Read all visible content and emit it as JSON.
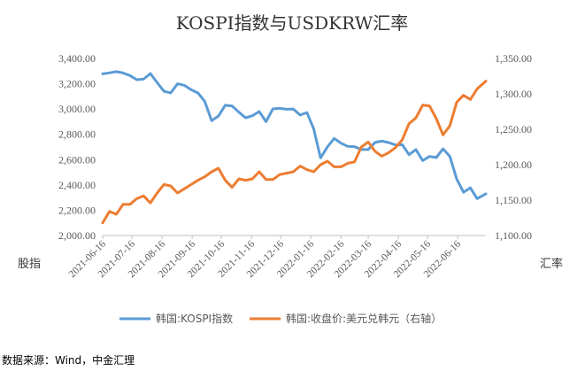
{
  "chart_data": {
    "type": "line",
    "title": "KOSPI指数与USDKRW汇率",
    "ylabel_left": "股指",
    "ylabel_right": "汇率",
    "ylim_left": [
      2000,
      3400
    ],
    "ylim_right": [
      1100,
      1350
    ],
    "yticks_left": [
      "2,000.00",
      "2,200.00",
      "2,400.00",
      "2,600.00",
      "2,800.00",
      "3,000.00",
      "3,200.00",
      "3,400.00"
    ],
    "yticks_right": [
      "1,100.00",
      "1,150.00",
      "1,200.00",
      "1,250.00",
      "1,300.00",
      "1,350.00"
    ],
    "x_categories": [
      "2021-06-16",
      "2021-07-16",
      "2021-08-16",
      "2021-09-16",
      "2021-10-16",
      "2021-11-16",
      "2021-12-16",
      "2022-01-16",
      "2022-02-16",
      "2022-03-16",
      "2022-04-16",
      "2022-05-16",
      "2022-06-16"
    ],
    "x_range": [
      "2021-06-16",
      "2022-07-15"
    ],
    "legend_position": "bottom",
    "series": [
      {
        "name": "韩国:KOSPI指数",
        "axis": "left",
        "color": "#5B9BD5",
        "points": [
          [
            "2021-06-16",
            3278
          ],
          [
            "2021-06-23",
            3286
          ],
          [
            "2021-06-30",
            3296
          ],
          [
            "2021-07-07",
            3285
          ],
          [
            "2021-07-14",
            3265
          ],
          [
            "2021-07-21",
            3232
          ],
          [
            "2021-07-28",
            3236
          ],
          [
            "2021-08-04",
            3280
          ],
          [
            "2021-08-11",
            3210
          ],
          [
            "2021-08-18",
            3140
          ],
          [
            "2021-08-25",
            3128
          ],
          [
            "2021-09-01",
            3200
          ],
          [
            "2021-09-08",
            3187
          ],
          [
            "2021-09-15",
            3153
          ],
          [
            "2021-09-22",
            3127
          ],
          [
            "2021-09-29",
            3060
          ],
          [
            "2021-10-06",
            2908
          ],
          [
            "2021-10-13",
            2944
          ],
          [
            "2021-10-20",
            3030
          ],
          [
            "2021-10-27",
            3025
          ],
          [
            "2021-11-03",
            2975
          ],
          [
            "2021-11-10",
            2930
          ],
          [
            "2021-11-17",
            2947
          ],
          [
            "2021-11-24",
            2980
          ],
          [
            "2021-12-01",
            2900
          ],
          [
            "2021-12-08",
            3001
          ],
          [
            "2021-12-15",
            3006
          ],
          [
            "2021-12-22",
            2998
          ],
          [
            "2021-12-29",
            3000
          ],
          [
            "2022-01-05",
            2953
          ],
          [
            "2022-01-12",
            2972
          ],
          [
            "2022-01-19",
            2842
          ],
          [
            "2022-01-26",
            2614
          ],
          [
            "2022-02-02",
            2700
          ],
          [
            "2022-02-09",
            2768
          ],
          [
            "2022-02-16",
            2730
          ],
          [
            "2022-02-23",
            2705
          ],
          [
            "2022-03-02",
            2703
          ],
          [
            "2022-03-09",
            2680
          ],
          [
            "2022-03-16",
            2680
          ],
          [
            "2022-03-23",
            2736
          ],
          [
            "2022-03-30",
            2746
          ],
          [
            "2022-04-06",
            2735
          ],
          [
            "2022-04-13",
            2716
          ],
          [
            "2022-04-20",
            2718
          ],
          [
            "2022-04-27",
            2639
          ],
          [
            "2022-05-04",
            2680
          ],
          [
            "2022-05-11",
            2592
          ],
          [
            "2022-05-18",
            2625
          ],
          [
            "2022-05-25",
            2617
          ],
          [
            "2022-06-01",
            2685
          ],
          [
            "2022-06-08",
            2626
          ],
          [
            "2022-06-15",
            2447
          ],
          [
            "2022-06-22",
            2342
          ],
          [
            "2022-06-29",
            2377
          ],
          [
            "2022-07-06",
            2292
          ],
          [
            "2022-07-15",
            2330
          ]
        ]
      },
      {
        "name": "韩国:收盘价:美元兑韩元（右轴）",
        "axis": "right",
        "color": "#ED7D31",
        "points": [
          [
            "2021-06-16",
            1118
          ],
          [
            "2021-06-23",
            1134
          ],
          [
            "2021-06-30",
            1130
          ],
          [
            "2021-07-07",
            1144
          ],
          [
            "2021-07-14",
            1144
          ],
          [
            "2021-07-21",
            1152
          ],
          [
            "2021-07-28",
            1156
          ],
          [
            "2021-08-04",
            1146
          ],
          [
            "2021-08-11",
            1160
          ],
          [
            "2021-08-18",
            1172
          ],
          [
            "2021-08-25",
            1170
          ],
          [
            "2021-09-01",
            1160
          ],
          [
            "2021-09-08",
            1166
          ],
          [
            "2021-09-15",
            1172
          ],
          [
            "2021-09-22",
            1178
          ],
          [
            "2021-09-29",
            1183
          ],
          [
            "2021-10-06",
            1190
          ],
          [
            "2021-10-13",
            1195
          ],
          [
            "2021-10-20",
            1178
          ],
          [
            "2021-10-27",
            1168
          ],
          [
            "2021-11-03",
            1180
          ],
          [
            "2021-11-10",
            1178
          ],
          [
            "2021-11-17",
            1180
          ],
          [
            "2021-11-24",
            1190
          ],
          [
            "2021-12-01",
            1179
          ],
          [
            "2021-12-08",
            1179
          ],
          [
            "2021-12-15",
            1186
          ],
          [
            "2021-12-22",
            1188
          ],
          [
            "2021-12-29",
            1190
          ],
          [
            "2022-01-05",
            1198
          ],
          [
            "2022-01-12",
            1193
          ],
          [
            "2022-01-19",
            1190
          ],
          [
            "2022-01-26",
            1200
          ],
          [
            "2022-02-02",
            1205
          ],
          [
            "2022-02-09",
            1197
          ],
          [
            "2022-02-16",
            1197
          ],
          [
            "2022-02-23",
            1202
          ],
          [
            "2022-03-02",
            1204
          ],
          [
            "2022-03-09",
            1225
          ],
          [
            "2022-03-16",
            1232
          ],
          [
            "2022-03-23",
            1219
          ],
          [
            "2022-03-30",
            1212
          ],
          [
            "2022-04-06",
            1217
          ],
          [
            "2022-04-13",
            1224
          ],
          [
            "2022-04-20",
            1235
          ],
          [
            "2022-04-27",
            1258
          ],
          [
            "2022-05-04",
            1266
          ],
          [
            "2022-05-11",
            1284
          ],
          [
            "2022-05-18",
            1283
          ],
          [
            "2022-05-25",
            1265
          ],
          [
            "2022-06-01",
            1242
          ],
          [
            "2022-06-08",
            1255
          ],
          [
            "2022-06-15",
            1288
          ],
          [
            "2022-06-22",
            1298
          ],
          [
            "2022-06-29",
            1292
          ],
          [
            "2022-07-06",
            1307
          ],
          [
            "2022-07-15",
            1318
          ]
        ]
      }
    ],
    "source": "数据来源：Wind，中金汇理"
  }
}
